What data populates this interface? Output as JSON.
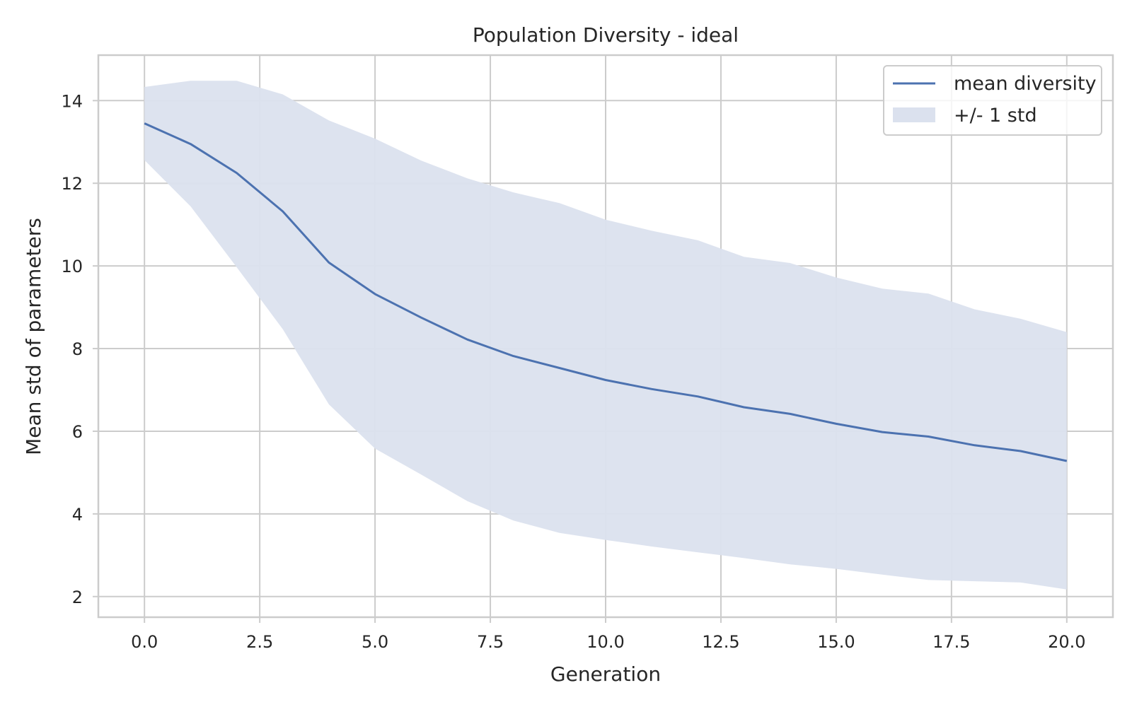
{
  "chart_data": {
    "type": "line",
    "title": "Population Diversity - ideal",
    "xlabel": "Generation",
    "ylabel": "Mean std of parameters",
    "xlim": [
      -1.0,
      21.0
    ],
    "ylim": [
      1.5,
      15.1
    ],
    "x_ticks": [
      0.0,
      2.5,
      5.0,
      7.5,
      10.0,
      12.5,
      15.0,
      17.5,
      20.0
    ],
    "x_tick_labels": [
      "0.0",
      "2.5",
      "5.0",
      "7.5",
      "10.0",
      "12.5",
      "15.0",
      "17.5",
      "20.0"
    ],
    "y_ticks": [
      2,
      4,
      6,
      8,
      10,
      12,
      14
    ],
    "y_tick_labels": [
      "2",
      "4",
      "6",
      "8",
      "10",
      "12",
      "14"
    ],
    "grid": true,
    "legend_position": "top-right",
    "x": [
      0,
      1,
      2,
      3,
      4,
      5,
      6,
      7,
      8,
      9,
      10,
      11,
      12,
      13,
      14,
      15,
      16,
      17,
      18,
      19,
      20
    ],
    "series": [
      {
        "name": "mean diversity",
        "kind": "line",
        "color": "#4c72b0",
        "values": [
          13.45,
          12.95,
          12.25,
          11.32,
          10.08,
          9.32,
          8.75,
          8.22,
          7.82,
          7.53,
          7.24,
          7.02,
          6.84,
          6.58,
          6.42,
          6.18,
          5.98,
          5.87,
          5.66,
          5.52,
          5.28
        ]
      },
      {
        "name": "+/- 1 std",
        "kind": "band",
        "color": "#dbe1ee",
        "upper": [
          14.33,
          14.48,
          14.48,
          14.15,
          13.52,
          13.08,
          12.55,
          12.12,
          11.78,
          11.52,
          11.12,
          10.85,
          10.62,
          10.22,
          10.07,
          9.72,
          9.45,
          9.33,
          8.95,
          8.72,
          8.4
        ],
        "lower": [
          12.56,
          11.44,
          9.97,
          8.47,
          6.65,
          5.58,
          4.95,
          4.31,
          3.84,
          3.54,
          3.37,
          3.21,
          3.07,
          2.93,
          2.78,
          2.67,
          2.53,
          2.4,
          2.37,
          2.34,
          2.17
        ]
      }
    ]
  }
}
